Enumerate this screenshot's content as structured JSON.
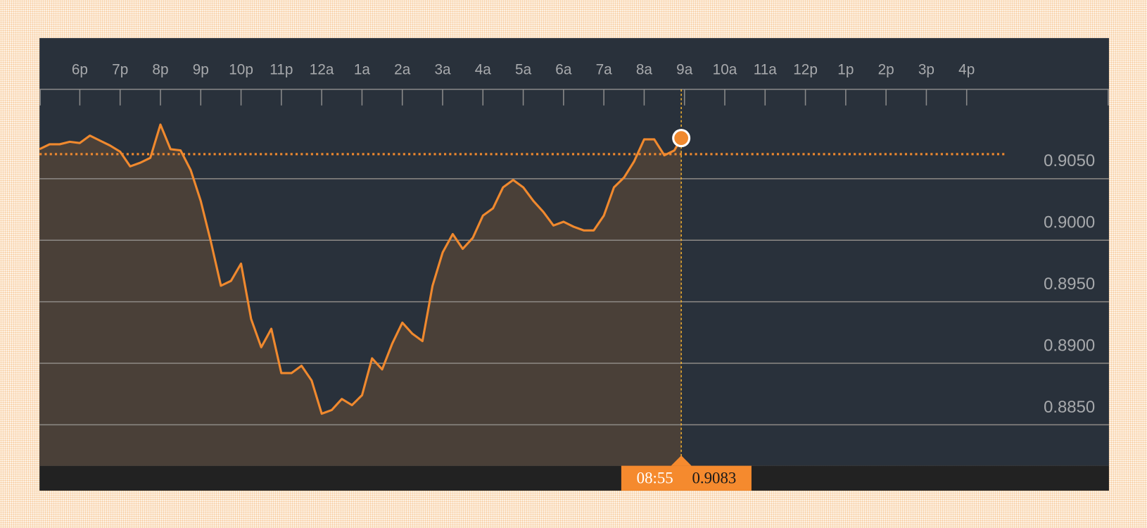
{
  "chart_data": {
    "type": "line",
    "x": [
      17,
      17.25,
      17.5,
      17.75,
      18,
      18.25,
      18.5,
      18.75,
      19,
      19.25,
      19.5,
      19.75,
      20,
      20.25,
      20.5,
      20.75,
      21,
      21.25,
      21.5,
      21.75,
      22,
      22.25,
      22.5,
      22.75,
      23,
      23.25,
      23.5,
      23.75,
      24,
      24.25,
      24.5,
      24.75,
      25,
      25.25,
      25.5,
      25.75,
      26,
      26.25,
      26.5,
      26.75,
      27,
      27.25,
      27.5,
      27.75,
      28,
      28.25,
      28.5,
      28.75,
      29,
      29.25,
      29.5,
      29.75,
      30,
      30.25,
      30.5,
      30.75,
      31,
      31.25,
      31.5,
      31.75,
      32,
      32.25,
      32.5,
      32.75,
      32.92
    ],
    "series": [
      {
        "color": "#f0892e",
        "values": [
          0.9074,
          0.9078,
          0.9078,
          0.908,
          0.9079,
          0.9085,
          0.9081,
          0.9077,
          0.9072,
          0.906,
          0.9063,
          0.9067,
          0.9094,
          0.9074,
          0.9073,
          0.9057,
          0.9032,
          0.8999,
          0.8963,
          0.8967,
          0.8981,
          0.8936,
          0.8913,
          0.8928,
          0.8892,
          0.8892,
          0.8898,
          0.8886,
          0.8859,
          0.8862,
          0.8871,
          0.8866,
          0.8874,
          0.8904,
          0.8895,
          0.8916,
          0.8933,
          0.8924,
          0.8918,
          0.8963,
          0.899,
          0.9005,
          0.8993,
          0.9002,
          0.902,
          0.9026,
          0.9043,
          0.9049,
          0.9043,
          0.9032,
          0.9023,
          0.9012,
          0.9015,
          0.9011,
          0.9008,
          0.9008,
          0.902,
          0.9043,
          0.9051,
          0.9064,
          0.9082,
          0.9082,
          0.9069,
          0.9073,
          0.9083
        ]
      }
    ],
    "xlim": [
      17,
      43.53
    ],
    "xticks": [
      {
        "value": 18,
        "label": "6p"
      },
      {
        "value": 19,
        "label": "7p"
      },
      {
        "value": 20,
        "label": "8p"
      },
      {
        "value": 21,
        "label": "9p"
      },
      {
        "value": 22,
        "label": "10p"
      },
      {
        "value": 23,
        "label": "11p"
      },
      {
        "value": 24,
        "label": "12a"
      },
      {
        "value": 25,
        "label": "1a"
      },
      {
        "value": 26,
        "label": "2a"
      },
      {
        "value": 27,
        "label": "3a"
      },
      {
        "value": 28,
        "label": "4a"
      },
      {
        "value": 29,
        "label": "5a"
      },
      {
        "value": 30,
        "label": "6a"
      },
      {
        "value": 31,
        "label": "7a"
      },
      {
        "value": 32,
        "label": "8a"
      },
      {
        "value": 33,
        "label": "9a"
      },
      {
        "value": 34,
        "label": "10a"
      },
      {
        "value": 35,
        "label": "11a"
      },
      {
        "value": 36,
        "label": "12p"
      },
      {
        "value": 37,
        "label": "1p"
      },
      {
        "value": 38,
        "label": "2p"
      },
      {
        "value": 39,
        "label": "3p"
      },
      {
        "value": 40,
        "label": "4p"
      }
    ],
    "ylim": [
      0.88167,
      0.91643
    ],
    "yticks": [
      {
        "value": 0.885,
        "label": "0.8850"
      },
      {
        "value": 0.89,
        "label": "0.8900"
      },
      {
        "value": 0.895,
        "label": "0.8950"
      },
      {
        "value": 0.9,
        "label": "0.9000"
      },
      {
        "value": 0.905,
        "label": "0.9050"
      }
    ],
    "reference_line": 0.907,
    "grid": true,
    "cursor": {
      "time": "08:55",
      "value": 0.9083
    }
  }
}
